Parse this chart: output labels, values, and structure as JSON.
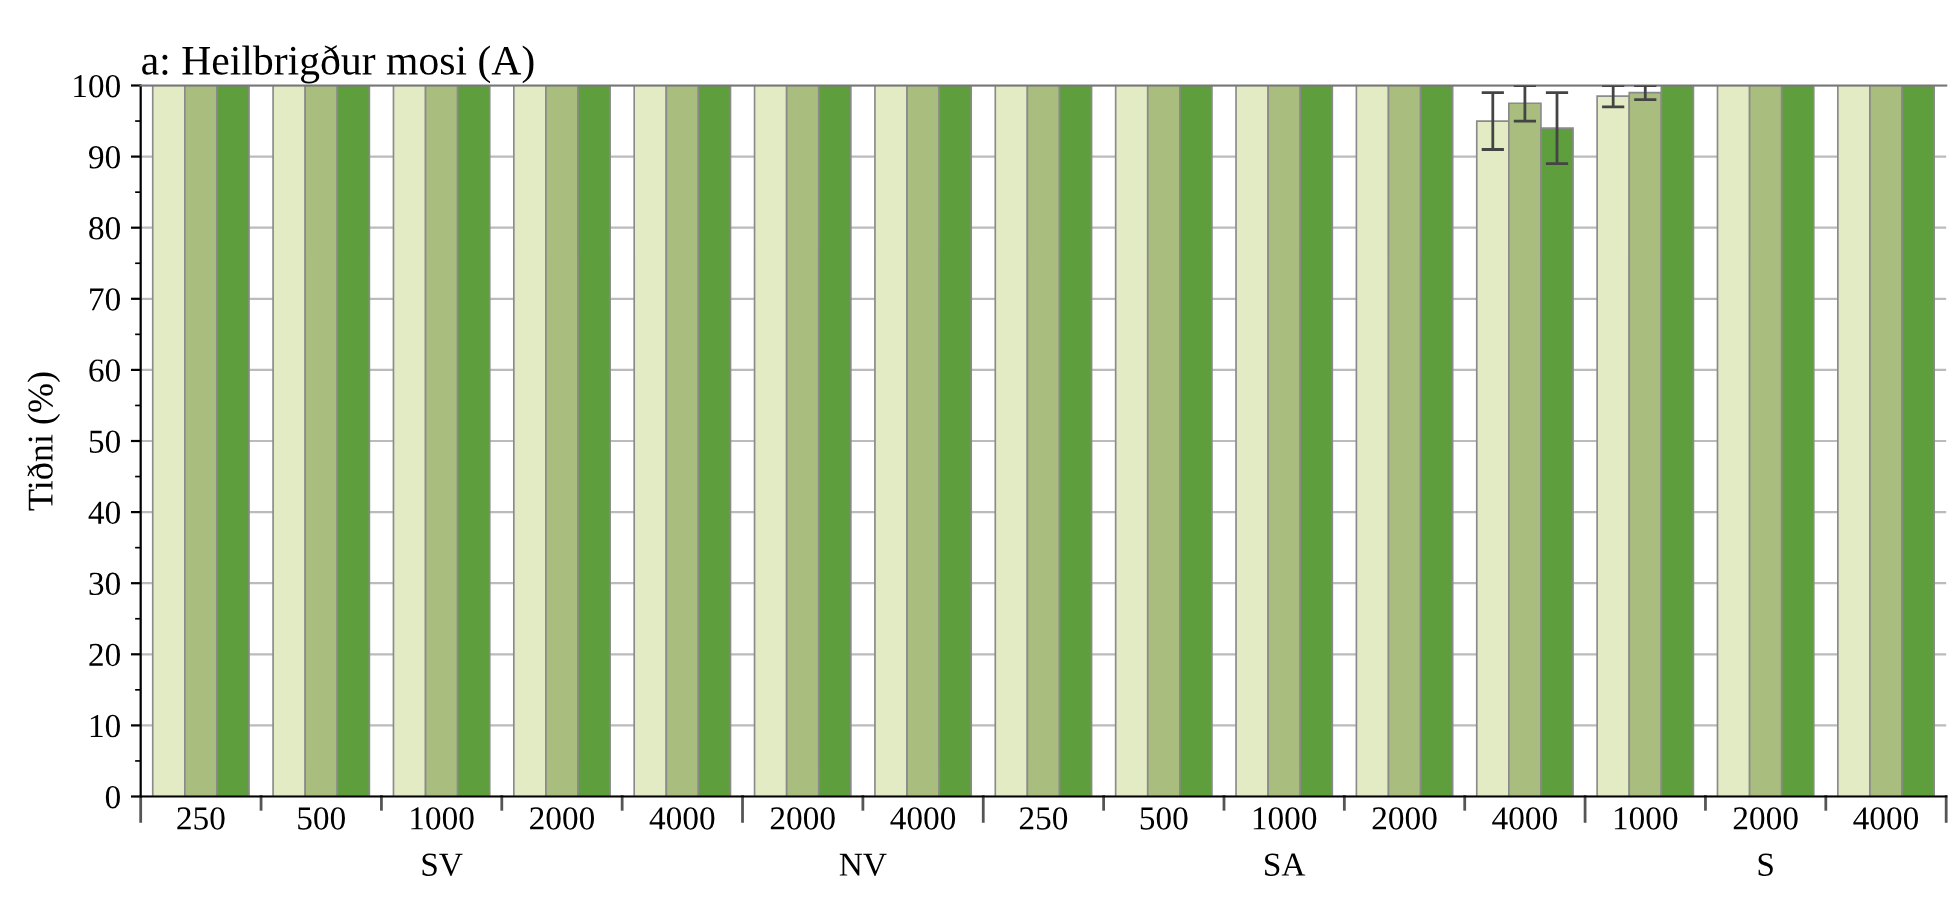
{
  "chart_data": {
    "type": "bar",
    "title": "a: Heilbrigður mosi (A)",
    "ylabel": "Tiðni (%)",
    "categories": [
      "250",
      "500",
      "1000",
      "2000",
      "4000",
      "2000",
      "4000",
      "250",
      "500",
      "1000",
      "2000",
      "4000",
      "1000",
      "2000",
      "4000"
    ],
    "annotations": [
      "SV",
      "NV",
      "SA",
      "S"
    ],
    "series": [
      {
        "color": "#e3ebc4",
        "values": [
          100,
          100,
          100,
          100,
          100,
          100,
          100,
          100,
          100,
          100,
          100,
          95,
          98.5,
          100,
          100
        ],
        "errors": [
          null,
          null,
          null,
          null,
          null,
          null,
          null,
          null,
          null,
          null,
          null,
          4,
          1.5,
          null,
          null
        ]
      },
      {
        "color": "#a9bd7e",
        "values": [
          100,
          100,
          100,
          100,
          100,
          100,
          100,
          100,
          100,
          100,
          100,
          97.5,
          99,
          100,
          100
        ],
        "errors": [
          null,
          null,
          null,
          null,
          null,
          null,
          null,
          null,
          null,
          null,
          null,
          2.5,
          1,
          null,
          null
        ]
      },
      {
        "color": "#5f9e3c",
        "values": [
          100,
          100,
          100,
          100,
          100,
          100,
          100,
          100,
          100,
          100,
          100,
          94,
          100,
          100,
          100
        ],
        "errors": [
          null,
          null,
          null,
          null,
          null,
          null,
          null,
          null,
          null,
          null,
          null,
          5,
          null,
          null,
          null
        ]
      }
    ],
    "ylim": [
      0,
      100
    ],
    "yticks": [
      0,
      10,
      20,
      30,
      40,
      50,
      60,
      70,
      80,
      90,
      100
    ],
    "grid": "y"
  }
}
